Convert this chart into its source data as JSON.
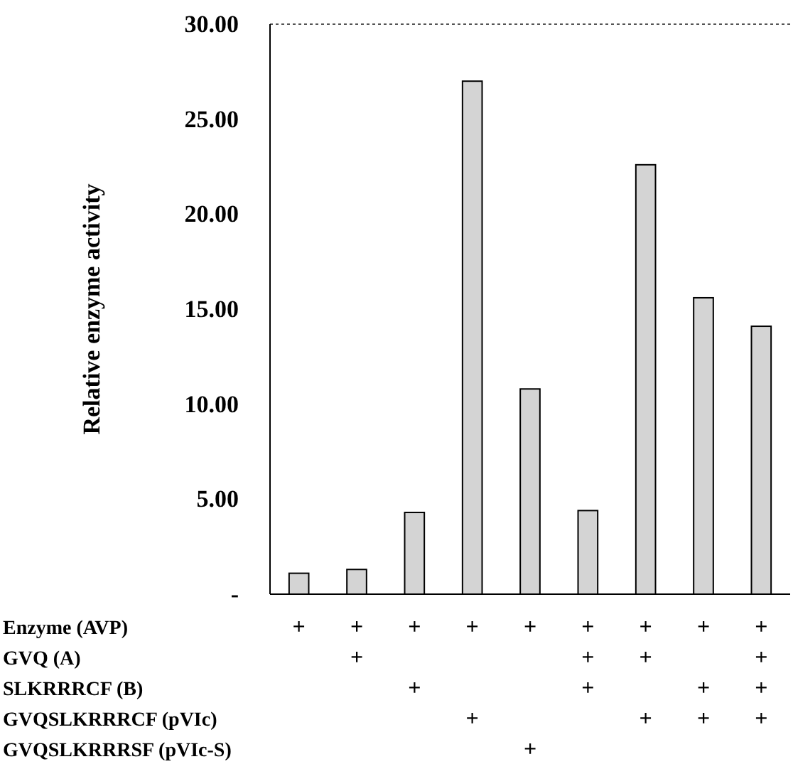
{
  "chart_data": [
    {
      "type": "bar",
      "ylabel": "Relative enzyme activity",
      "categories": [
        null,
        null,
        null,
        null,
        null,
        null,
        null,
        null,
        null
      ],
      "values": [
        1.1,
        1.3,
        4.3,
        27.0,
        10.8,
        4.4,
        22.6,
        15.6,
        14.1
      ],
      "color": "#d4d4d4",
      "ylim": [
        0,
        30
      ],
      "yticks": [
        {
          "value": 0,
          "label": "-"
        },
        {
          "value": 5,
          "label": "5.00"
        },
        {
          "value": 10,
          "label": "10.00"
        },
        {
          "value": 15,
          "label": "15.00"
        },
        {
          "value": 20,
          "label": "20.00"
        },
        {
          "value": 25,
          "label": "25.00"
        },
        {
          "value": 30,
          "label": "30.00"
        }
      ],
      "grid": false
    },
    {
      "type": "heatmap",
      "categories": [
        null,
        null,
        null,
        null,
        null,
        null,
        null,
        null,
        null
      ],
      "y_categories": [
        "Enzyme (AVP)",
        "GVQ (A)",
        "SLKRRRCF (B)",
        "GVQSLKRRRCF (pVIc)",
        "GVQSLKRRRSF (pVIc-S)"
      ],
      "cells": [
        [
          "+",
          "+",
          "+",
          "+",
          "+",
          "+",
          "+",
          "+",
          "+"
        ],
        [
          null,
          "+",
          null,
          null,
          null,
          "+",
          "+",
          null,
          "+"
        ],
        [
          null,
          null,
          "+",
          null,
          null,
          "+",
          null,
          "+",
          "+"
        ],
        [
          null,
          null,
          null,
          "+",
          null,
          null,
          "+",
          "+",
          "+"
        ],
        [
          null,
          null,
          null,
          null,
          "+",
          null,
          null,
          null,
          null
        ]
      ]
    }
  ]
}
